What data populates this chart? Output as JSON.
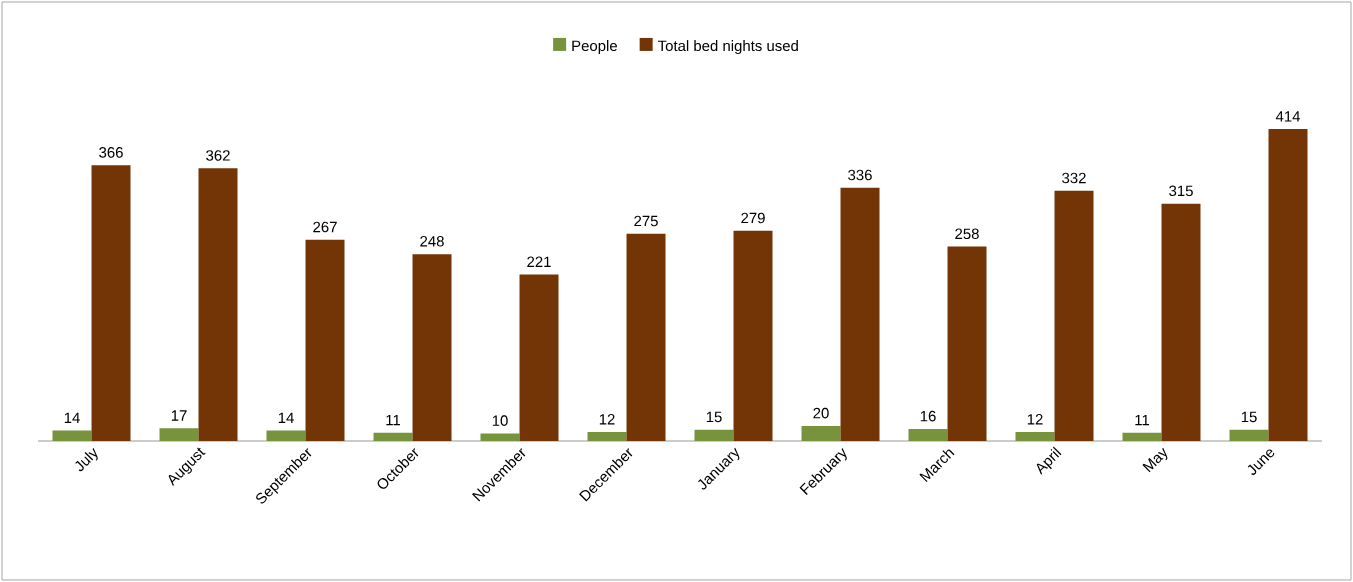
{
  "chart_data": {
    "type": "bar",
    "categories": [
      "July",
      "August",
      "September",
      "October",
      "November",
      "December",
      "January",
      "February",
      "March",
      "April",
      "May",
      "June"
    ],
    "series": [
      {
        "name": "People",
        "color": "#77933c",
        "values": [
          14,
          17,
          14,
          11,
          10,
          12,
          15,
          20,
          16,
          12,
          11,
          15
        ]
      },
      {
        "name": "Total bed nights used",
        "color": "#733506",
        "values": [
          366,
          362,
          267,
          248,
          221,
          275,
          279,
          336,
          258,
          332,
          315,
          414
        ]
      }
    ],
    "tick_labels": "x",
    "legend": "top",
    "data_labels": true
  }
}
